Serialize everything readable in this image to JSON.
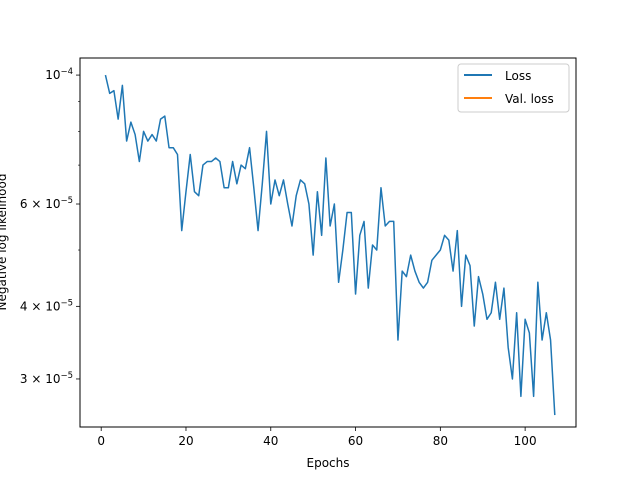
{
  "chart_data": {
    "type": "line",
    "title": "",
    "xlabel": "Epochs",
    "ylabel": "Negative log likelihood",
    "yscale": "log",
    "xlim": [
      -5,
      112
    ],
    "ylim": [
      2.48e-05,
      0.000107
    ],
    "x_ticks": [
      0,
      20,
      40,
      60,
      80,
      100
    ],
    "x_tick_labels": [
      "0",
      "20",
      "40",
      "60",
      "80",
      "100"
    ],
    "y_ticks": [
      3e-05,
      4e-05,
      6e-05,
      0.0001
    ],
    "y_tick_labels": [
      {
        "mantissa": "3",
        "exponent": "-5"
      },
      {
        "mantissa": "4",
        "exponent": "-5"
      },
      {
        "mantissa": "6",
        "exponent": "-5"
      },
      {
        "mantissa": "",
        "exponent": "-4"
      }
    ],
    "tick_times": "×",
    "tick_base": "10",
    "tick_minus": "−",
    "legend_position": "top-right",
    "grid": false,
    "series": [
      {
        "name": "Loss",
        "color": "#1f77b4",
        "x": [
          1,
          2,
          3,
          4,
          5,
          6,
          7,
          8,
          9,
          10,
          11,
          12,
          13,
          14,
          15,
          16,
          17,
          18,
          19,
          20,
          21,
          22,
          23,
          24,
          25,
          26,
          27,
          28,
          29,
          30,
          31,
          32,
          33,
          34,
          35,
          36,
          37,
          38,
          39,
          40,
          41,
          42,
          43,
          44,
          45,
          46,
          47,
          48,
          49,
          50,
          51,
          52,
          53,
          54,
          55,
          56,
          57,
          58,
          59,
          60,
          61,
          62,
          63,
          64,
          65,
          66,
          67,
          68,
          69,
          70,
          71,
          72,
          73,
          74,
          75,
          76,
          77,
          78,
          79,
          80,
          81,
          82,
          83,
          84,
          85,
          86,
          87,
          88,
          89,
          90,
          91,
          92,
          93,
          94,
          95,
          96,
          97,
          98,
          99,
          100,
          101,
          102,
          103,
          104,
          105,
          106,
          107
        ],
        "values": [
          0.0001,
          9.3e-05,
          9.4e-05,
          8.4e-05,
          9.6e-05,
          7.7e-05,
          8.3e-05,
          7.9e-05,
          7.1e-05,
          8e-05,
          7.7e-05,
          7.9e-05,
          7.7e-05,
          8.4e-05,
          8.5e-05,
          7.5e-05,
          7.5e-05,
          7.3e-05,
          5.4e-05,
          6.3e-05,
          7.3e-05,
          6.3e-05,
          6.2e-05,
          7e-05,
          7.1e-05,
          7.1e-05,
          7.2e-05,
          7.1e-05,
          6.4e-05,
          6.4e-05,
          7.1e-05,
          6.5e-05,
          7e-05,
          6.9e-05,
          7.5e-05,
          6.4e-05,
          5.4e-05,
          6.5e-05,
          8e-05,
          6e-05,
          6.6e-05,
          6.2e-05,
          6.6e-05,
          6e-05,
          5.5e-05,
          6.2e-05,
          6.6e-05,
          6.5e-05,
          6e-05,
          4.9e-05,
          6.3e-05,
          5.3e-05,
          7.2e-05,
          5.5e-05,
          6e-05,
          4.4e-05,
          5e-05,
          5.8e-05,
          5.8e-05,
          4.2e-05,
          5.3e-05,
          5.6e-05,
          4.3e-05,
          5.1e-05,
          5e-05,
          6.4e-05,
          5.5e-05,
          5.6e-05,
          5.6e-05,
          3.5e-05,
          4.6e-05,
          4.5e-05,
          4.9e-05,
          4.6e-05,
          4.4e-05,
          4.3e-05,
          4.4e-05,
          4.8e-05,
          4.9e-05,
          5e-05,
          5.3e-05,
          5.2e-05,
          4.6e-05,
          5.4e-05,
          4e-05,
          4.9e-05,
          4.7e-05,
          3.7e-05,
          4.5e-05,
          4.2e-05,
          3.8e-05,
          3.9e-05,
          4.4e-05,
          3.8e-05,
          4.3e-05,
          3.4e-05,
          3e-05,
          3.9e-05,
          2.8e-05,
          3.8e-05,
          3.6e-05,
          2.8e-05,
          4.4e-05,
          3.5e-05,
          3.9e-05,
          3.5e-05,
          2.6e-05
        ]
      },
      {
        "name": "Val. loss",
        "color": "#ff7f0e",
        "x": [],
        "values": []
      }
    ]
  }
}
